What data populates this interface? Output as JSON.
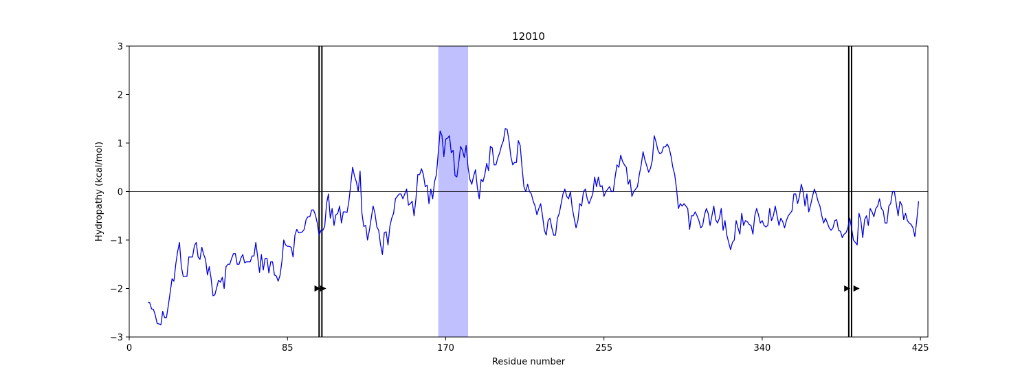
{
  "chart_data": {
    "type": "line",
    "title": "12010",
    "xlabel": "Residue number",
    "ylabel": "Hydropathy (kcal/mol)",
    "xlim": [
      0,
      429
    ],
    "ylim": [
      -3,
      3
    ],
    "xticks": [
      0,
      85,
      170,
      255,
      340,
      425
    ],
    "yticks": [
      -3,
      -2,
      -1,
      0,
      1,
      2,
      3
    ],
    "xtick_labels": [
      "0",
      "85",
      "170",
      "255",
      "340",
      "425"
    ],
    "ytick_labels": [
      "−3",
      "−2",
      "−1",
      "0",
      "1",
      "2",
      "3"
    ],
    "grid": false,
    "colors": {
      "series": "#0000dd",
      "highlight": "#c0c0ff",
      "markers": "#000000",
      "zero_line": "#000000"
    },
    "highlight_region": [
      166,
      182
    ],
    "vertical_line_pairs": [
      [
        102,
        103.5
      ],
      [
        386.5,
        388
      ]
    ],
    "arrow_markers": [
      {
        "x": 101,
        "y": -2
      },
      {
        "x": 104,
        "y": -2
      },
      {
        "x": 385.5,
        "y": -2
      },
      {
        "x": 390.5,
        "y": -2
      }
    ],
    "series": [
      {
        "x_start": 10,
        "values": [
          -2.28,
          -2.29,
          -2.42,
          -2.43,
          -2.55,
          -2.72,
          -2.73,
          -2.75,
          -2.47,
          -2.6,
          -2.6,
          -2.35,
          -2.08,
          -1.8,
          -1.85,
          -1.5,
          -1.24,
          -1.05,
          -1.55,
          -1.75,
          -1.75,
          -1.75,
          -1.35,
          -1.35,
          -1.35,
          -1.12,
          -1.05,
          -1.35,
          -1.4,
          -1.15,
          -1.3,
          -1.4,
          -1.72,
          -1.55,
          -1.8,
          -2.15,
          -2.13,
          -1.98,
          -1.83,
          -1.87,
          -1.77,
          -2.0,
          -1.55,
          -1.5,
          -1.5,
          -1.38,
          -1.28,
          -1.28,
          -1.5,
          -1.5,
          -1.37,
          -1.3,
          -1.47,
          -1.45,
          -1.45,
          -1.45,
          -1.33,
          -1.33,
          -1.05,
          -1.35,
          -1.67,
          -1.3,
          -1.62,
          -1.38,
          -1.38,
          -1.68,
          -1.45,
          -1.45,
          -1.72,
          -1.74,
          -1.85,
          -1.73,
          -1.45,
          -1.0,
          -1.1,
          -1.13,
          -1.13,
          -1.15,
          -1.35,
          -0.9,
          -0.78,
          -0.85,
          -0.85,
          -0.83,
          -0.78,
          -0.58,
          -0.52,
          -0.52,
          -0.38,
          -0.38,
          -0.48,
          -0.65,
          -0.9,
          -0.8,
          -0.8,
          -0.72,
          -0.25,
          -0.05,
          -0.55,
          -0.35,
          -0.7,
          -0.48,
          -0.45,
          -0.3,
          -0.65,
          -0.42,
          -0.42,
          -0.43,
          -0.2,
          0.15,
          0.5,
          0.32,
          0.2,
          0.0,
          0.42,
          -0.45,
          -0.72,
          -0.7,
          -1.0,
          -0.8,
          -0.55,
          -0.3,
          -0.45,
          -0.73,
          -0.8,
          -1.1,
          -1.3,
          -0.85,
          -0.83,
          -1.1,
          -0.72,
          -0.55,
          -0.45,
          -0.15,
          -0.1,
          -0.05,
          -0.05,
          -0.15,
          -0.05,
          0.05,
          -0.28,
          -0.25,
          -0.2,
          -0.5,
          -0.15,
          0.35,
          0.35,
          0.47,
          0.35,
          0.1,
          0.13,
          -0.25,
          0.05,
          -0.15,
          0.2,
          0.35,
          0.8,
          1.25,
          1.15,
          0.72,
          1.08,
          1.1,
          1.15,
          0.8,
          0.85,
          0.33,
          0.3,
          0.6,
          0.93,
          0.85,
          0.7,
          0.95,
          0.5,
          0.25,
          0.15,
          0.32,
          0.45,
          0.08,
          -0.15,
          0.25,
          0.2,
          0.35,
          0.58,
          0.43,
          0.93,
          0.9,
          0.55,
          0.55,
          0.7,
          0.8,
          0.95,
          1.05,
          1.3,
          1.28,
          1.05,
          0.72,
          0.55,
          0.6,
          0.6,
          1.05,
          0.95,
          0.5,
          0.1,
          0.0,
          0.15,
          0.0,
          -0.05,
          -0.2,
          -0.3,
          -0.48,
          -0.35,
          -0.25,
          -0.5,
          -0.8,
          -0.9,
          -0.6,
          -0.55,
          -0.75,
          -0.9,
          -0.9,
          -0.55,
          -0.45,
          -0.25,
          -0.05,
          0.05,
          -0.1,
          -0.15,
          0.0,
          -0.35,
          -0.55,
          -0.75,
          -0.6,
          -0.25,
          -0.3,
          0.0,
          0.05,
          -0.15,
          -0.25,
          -0.15,
          -0.05,
          0.3,
          0.1,
          0.3,
          0.1,
          0.12,
          -0.1,
          0.0,
          0.05,
          0.1,
          0.0,
          0.0,
          0.3,
          0.55,
          0.5,
          0.75,
          0.62,
          0.55,
          0.5,
          0.15,
          0.25,
          -0.1,
          0.0,
          0.05,
          0.1,
          0.35,
          0.55,
          0.82,
          0.65,
          0.53,
          0.4,
          0.48,
          0.65,
          1.15,
          1.02,
          0.85,
          0.78,
          0.8,
          0.92,
          0.92,
          0.98,
          0.9,
          0.73,
          0.5,
          0.35,
          0.05,
          -0.35,
          -0.25,
          -0.3,
          -0.25,
          -0.3,
          -0.35,
          -0.78,
          -0.5,
          -0.5,
          -0.42,
          -0.5,
          -0.6,
          -0.75,
          -0.7,
          -0.48,
          -0.35,
          -0.45,
          -0.7,
          -0.5,
          -0.3,
          -0.58,
          -0.65,
          -0.55,
          -0.35,
          -0.8,
          -0.6,
          -0.9,
          -1.05,
          -1.2,
          -1.05,
          -1.0,
          -0.6,
          -0.75,
          -0.88,
          -0.45,
          -0.7,
          -0.6,
          -0.62,
          -0.68,
          -0.7,
          -0.88,
          -0.5,
          -0.35,
          -0.48,
          -0.65,
          -0.6,
          -0.7,
          -0.73,
          -0.7,
          -0.35,
          -0.6,
          -0.5,
          -0.3,
          -0.5,
          -0.7,
          -0.55,
          -0.62,
          -0.75,
          -0.6,
          -0.5,
          -0.45,
          -0.4,
          -0.05,
          -0.05,
          -0.25,
          -0.1,
          0.15,
          0.0,
          -0.3,
          -0.05,
          -0.42,
          -0.28,
          -0.1,
          0.05,
          -0.05,
          -0.2,
          -0.3,
          -0.5,
          -0.65,
          -0.55,
          -0.65,
          -0.75,
          -0.8,
          -0.75,
          -0.6,
          -0.58,
          -0.8,
          -0.82,
          -0.95,
          -0.88,
          -0.85,
          -0.75,
          -0.55,
          -0.75,
          -1.0,
          -1.05,
          -1.1,
          -0.45,
          -0.6,
          -0.95,
          -0.58,
          -0.5,
          -0.7,
          -0.35,
          -0.42,
          -0.52,
          -0.35,
          -0.3,
          -0.15,
          -0.35,
          -0.4,
          -0.65,
          -0.65,
          -0.3,
          -0.25,
          0.0,
          0.0,
          -0.25,
          -0.5,
          -0.2,
          -0.28,
          -0.58,
          -0.45,
          -0.6,
          -0.65,
          -0.68,
          -0.75,
          -0.93,
          -0.6,
          -0.2
        ]
      }
    ]
  }
}
